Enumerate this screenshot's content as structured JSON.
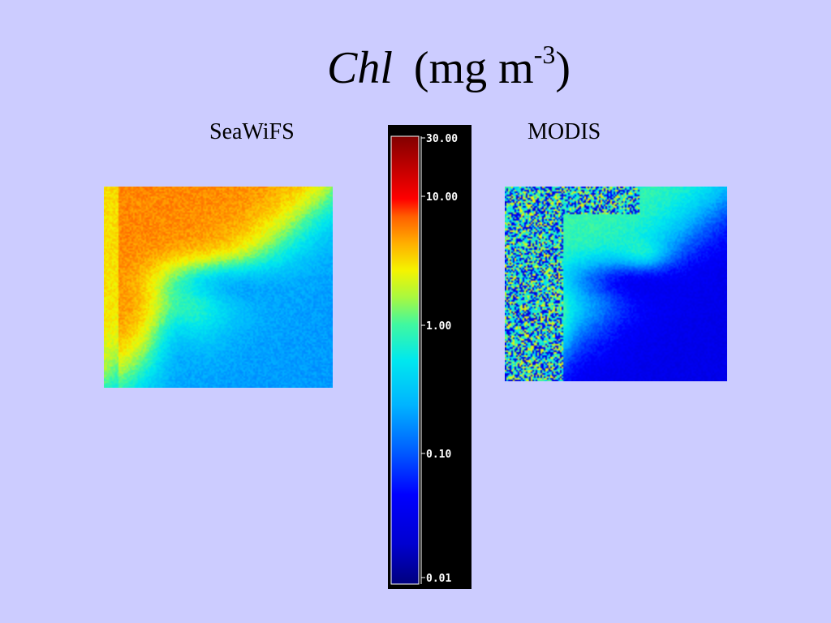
{
  "title": {
    "variable": "Chl",
    "units_open": "(mg m",
    "units_exponent": "-3",
    "units_close": ")"
  },
  "panels": {
    "left_label": "SeaWiFS",
    "right_label": "MODIS"
  },
  "colorbar": {
    "scale": "log",
    "ticks": [
      "30.00",
      "10.00",
      "1.00",
      "0.10",
      "0.01"
    ]
  },
  "colors": {
    "background": "#ccccff",
    "colorbar_background": "#000000"
  }
}
